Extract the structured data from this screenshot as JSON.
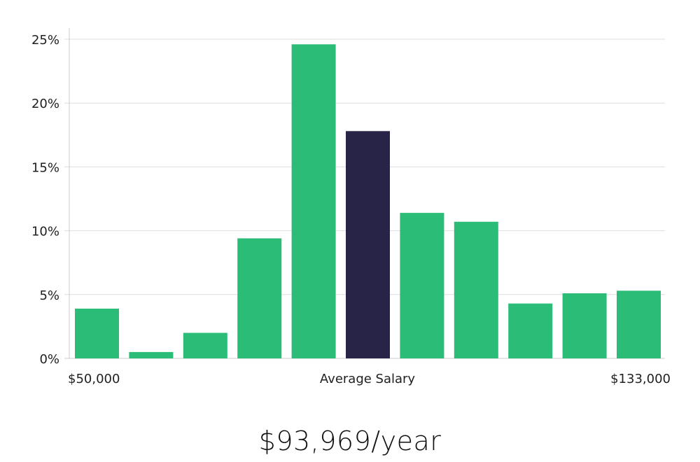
{
  "chart_data": {
    "type": "bar",
    "values": [
      3.9,
      0.5,
      2.0,
      9.4,
      24.6,
      17.8,
      11.4,
      10.7,
      4.3,
      5.1,
      5.3
    ],
    "highlight_index": 5,
    "ylim": [
      0,
      26
    ],
    "yticks": [
      0,
      5,
      10,
      15,
      20,
      25
    ],
    "ytick_labels": [
      "0%",
      "5%",
      "10%",
      "15%",
      "20%",
      "25%"
    ],
    "x_labels": {
      "left": "$50,000",
      "center": "Average Salary",
      "right": "$133,000"
    },
    "grid": true,
    "colors": {
      "bar": "#2bbd77",
      "highlight": "#272447",
      "grid": "#dddddd",
      "axis": "#cccccc"
    }
  },
  "summary": {
    "salary_text": "$93,969/year"
  }
}
